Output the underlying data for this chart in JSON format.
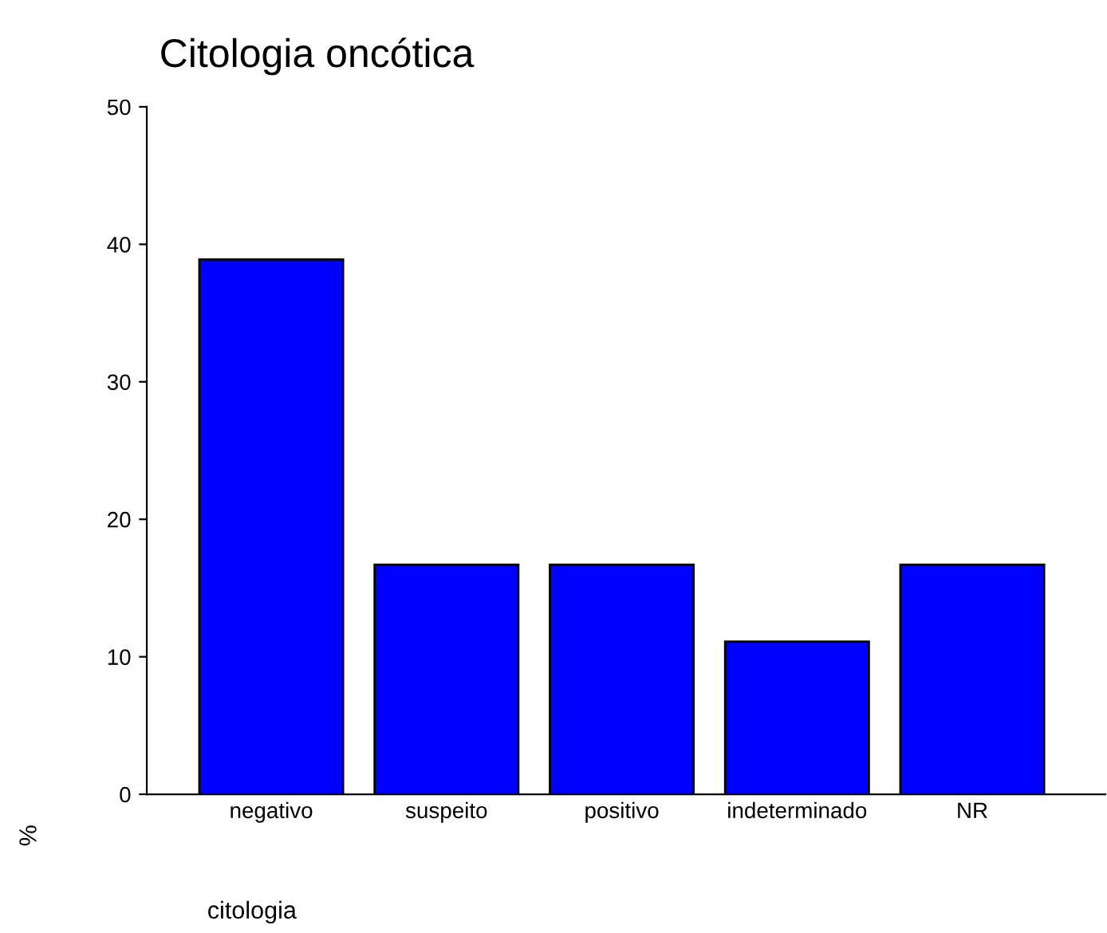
{
  "chart_data": {
    "type": "bar",
    "title": "Citologia oncótica",
    "xlabel": "citologia",
    "ylabel": "%",
    "categories": [
      "negativo",
      "suspeito",
      "positivo",
      "indeterminado",
      "NR"
    ],
    "values": [
      38.9,
      16.7,
      16.7,
      11.1,
      16.7
    ],
    "color": "#0000ff",
    "ylim": [
      0,
      50
    ],
    "yticks": [
      0,
      10,
      20,
      30,
      40,
      50
    ],
    "grid": false,
    "legend": false
  }
}
